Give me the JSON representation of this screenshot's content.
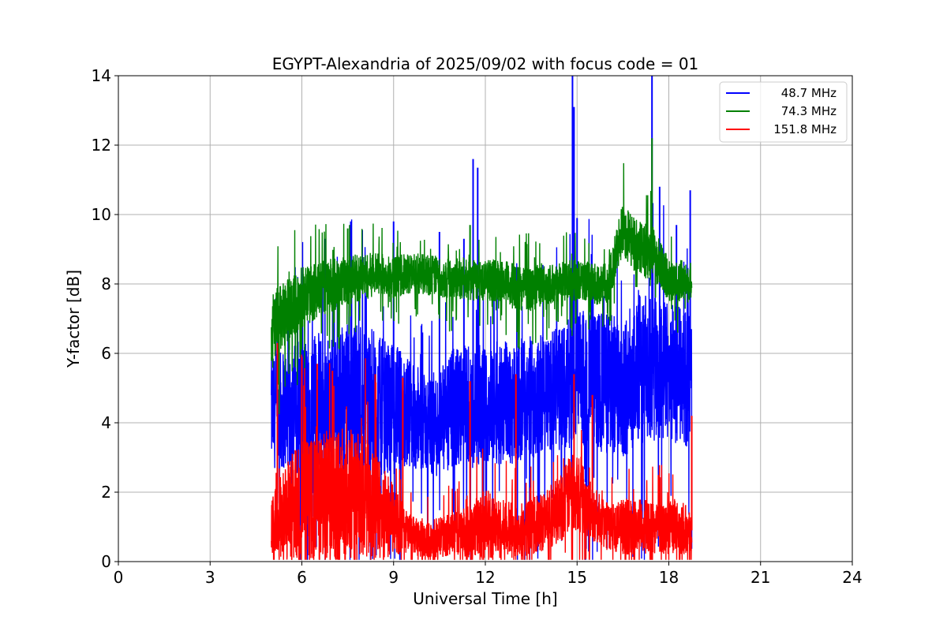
{
  "chart_data": {
    "type": "line",
    "title": "EGYPT-Alexandria of 2025/09/02 with focus code = 01",
    "xlabel": "Universal Time [h]",
    "ylabel": "Y-factor [dB]",
    "xlim": [
      0,
      24
    ],
    "ylim": [
      0,
      14
    ],
    "xticks": [
      0,
      3,
      6,
      9,
      12,
      15,
      18,
      21,
      24
    ],
    "yticks": [
      0,
      2,
      4,
      6,
      8,
      10,
      12,
      14
    ],
    "grid": true,
    "legend_position": "top-right",
    "series": [
      {
        "name": "48.7 MHz",
        "color": "#0000ff",
        "x": [
          5.0,
          5.5,
          6.0,
          6.5,
          7.0,
          7.5,
          8.0,
          8.5,
          9.0,
          9.5,
          10.0,
          10.5,
          11.0,
          11.5,
          12.0,
          12.5,
          13.0,
          13.5,
          14.0,
          14.5,
          15.0,
          15.5,
          16.0,
          16.5,
          17.0,
          17.5,
          18.0,
          18.5,
          18.75
        ],
        "base": [
          4.3,
          4.4,
          4.5,
          4.6,
          4.5,
          4.7,
          4.8,
          4.5,
          4.4,
          4.3,
          4.0,
          3.9,
          4.4,
          4.5,
          4.5,
          4.6,
          4.6,
          4.7,
          4.9,
          5.0,
          5.3,
          5.2,
          5.1,
          5.0,
          5.6,
          5.4,
          5.5,
          5.3,
          5.2
        ],
        "spread": [
          1.6,
          1.8,
          2.0,
          2.0,
          2.1,
          2.2,
          2.3,
          2.0,
          1.9,
          1.6,
          1.4,
          1.6,
          1.8,
          1.9,
          1.7,
          1.8,
          1.8,
          1.8,
          1.7,
          1.8,
          2.0,
          2.0,
          2.1,
          2.0,
          2.3,
          2.2,
          2.0,
          2.0,
          1.9
        ],
        "spikes": [
          [
            7.6,
            9.8
          ],
          [
            9.0,
            9.8
          ],
          [
            10.5,
            9.5
          ],
          [
            11.3,
            9.3
          ],
          [
            11.6,
            11.6
          ],
          [
            11.75,
            11.35
          ],
          [
            14.85,
            14.0
          ],
          [
            14.9,
            13.1
          ],
          [
            15.0,
            9.9
          ],
          [
            17.45,
            14.0
          ],
          [
            17.7,
            10.8
          ],
          [
            18.25,
            9.7
          ],
          [
            18.7,
            10.7
          ]
        ]
      },
      {
        "name": "74.3 MHz",
        "color": "#008000",
        "x": [
          5.0,
          5.5,
          6.0,
          6.5,
          7.0,
          7.5,
          8.0,
          8.5,
          9.0,
          9.5,
          10.0,
          10.5,
          11.0,
          11.5,
          12.0,
          12.5,
          13.0,
          13.5,
          14.0,
          14.5,
          15.0,
          15.5,
          16.0,
          16.5,
          17.0,
          17.5,
          18.0,
          18.5,
          18.75
        ],
        "base": [
          6.6,
          7.2,
          7.6,
          7.8,
          8.0,
          8.1,
          8.2,
          8.3,
          8.2,
          8.3,
          8.3,
          8.2,
          8.2,
          8.1,
          8.1,
          8.1,
          7.9,
          7.9,
          8.0,
          8.1,
          8.1,
          8.0,
          8.0,
          9.6,
          9.0,
          8.9,
          8.1,
          8.1,
          8.0
        ],
        "spread": [
          1.2,
          0.9,
          0.9,
          0.8,
          0.8,
          0.7,
          0.7,
          0.6,
          0.6,
          0.6,
          0.6,
          0.6,
          0.6,
          0.6,
          0.6,
          0.6,
          0.7,
          0.7,
          0.6,
          0.6,
          0.6,
          0.6,
          0.6,
          0.8,
          0.8,
          0.8,
          0.6,
          0.6,
          0.6
        ],
        "spikes": [
          [
            7.5,
            9.6
          ],
          [
            11.5,
            9.7
          ],
          [
            17.45,
            12.2
          ]
        ]
      },
      {
        "name": "151.8 MHz",
        "color": "#ff0000",
        "x": [
          5.0,
          5.5,
          6.0,
          6.5,
          7.0,
          7.5,
          8.0,
          8.5,
          9.0,
          9.5,
          10.0,
          10.5,
          11.0,
          11.5,
          12.0,
          12.5,
          13.0,
          13.5,
          14.0,
          14.5,
          15.0,
          15.5,
          16.0,
          16.5,
          17.0,
          17.5,
          18.0,
          18.5,
          18.75
        ],
        "base": [
          1.0,
          1.5,
          1.8,
          1.7,
          2.0,
          1.9,
          1.8,
          1.5,
          1.2,
          0.8,
          0.6,
          0.7,
          0.8,
          0.9,
          1.1,
          0.9,
          0.9,
          1.0,
          1.2,
          1.6,
          2.2,
          1.4,
          1.0,
          1.0,
          1.0,
          1.0,
          1.0,
          1.0,
          0.9
        ],
        "spread": [
          0.8,
          1.5,
          1.8,
          1.8,
          2.0,
          2.0,
          1.9,
          1.5,
          1.0,
          0.6,
          0.5,
          0.6,
          0.6,
          0.8,
          1.0,
          0.9,
          0.8,
          0.8,
          0.9,
          1.0,
          1.3,
          0.8,
          0.7,
          0.8,
          0.8,
          0.8,
          0.8,
          0.8,
          0.6
        ],
        "spikes": [
          [
            5.2,
            6.3
          ],
          [
            6.0,
            5.9
          ],
          [
            6.5,
            5.7
          ],
          [
            7.0,
            5.5
          ],
          [
            8.4,
            5.4
          ],
          [
            9.3,
            5.3
          ],
          [
            11.5,
            5.2
          ],
          [
            13.0,
            5.4
          ],
          [
            14.9,
            5.4
          ],
          [
            15.5,
            4.8
          ],
          [
            18.75,
            4.2
          ]
        ]
      }
    ]
  }
}
